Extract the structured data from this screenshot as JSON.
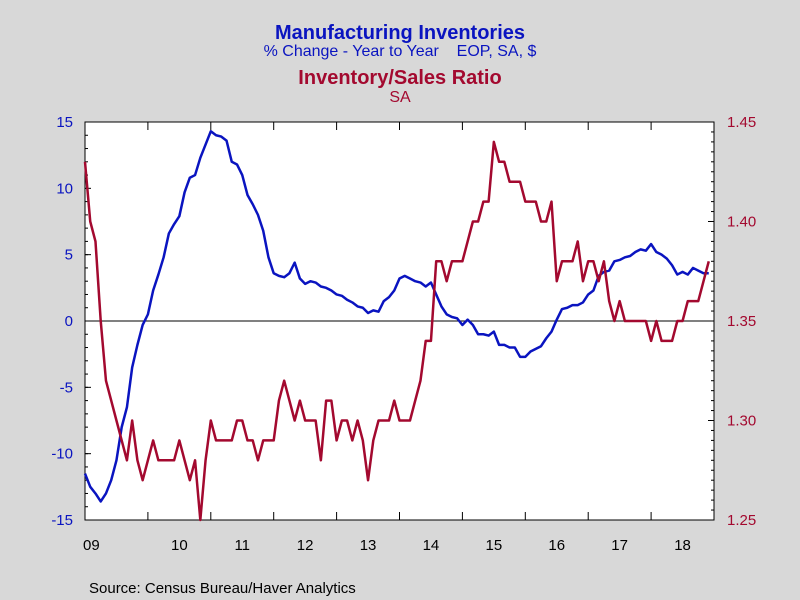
{
  "titles": {
    "title1": "Manufacturing Inventories",
    "subtitle1": "% Change - Year to Year    EOP, SA, $",
    "title2": "Inventory/Sales Ratio",
    "subtitle2": "SA"
  },
  "source": "Source:  Census Bureau/Haver Analytics",
  "colors": {
    "blue": "#0a14c0",
    "red": "#a3092f",
    "background": "#d8d8d8",
    "plot_background": "#ffffff"
  },
  "chart_data": {
    "type": "line",
    "grid": false,
    "x_range": [
      2009.0,
      2019.0
    ],
    "x_tick_labels": [
      "09",
      "10",
      "11",
      "12",
      "13",
      "14",
      "15",
      "16",
      "17",
      "18"
    ],
    "y_left": {
      "range": [
        -15,
        15
      ],
      "ticks": [
        15,
        10,
        5,
        0,
        -5,
        -10,
        -15
      ],
      "tick_labels": [
        "15",
        "10",
        "5",
        "0",
        "-5",
        "-10",
        "-15"
      ],
      "zero_line": true
    },
    "y_right": {
      "range": [
        1.25,
        1.45
      ],
      "ticks": [
        1.45,
        1.4,
        1.35,
        1.3,
        1.25
      ],
      "tick_labels": [
        "1.45",
        "1.40",
        "1.35",
        "1.30",
        "1.25"
      ]
    },
    "series": [
      {
        "name": "Manufacturing Inventories",
        "axis": "left",
        "color": "#0a14c0",
        "start": 2009.0,
        "step": 0.0833333,
        "values": [
          -11.5,
          -12.5,
          -13.0,
          -13.6,
          -13.0,
          -12.0,
          -10.5,
          -8.0,
          -6.5,
          -3.5,
          -1.8,
          -0.3,
          0.5,
          2.3,
          3.5,
          4.8,
          6.6,
          7.3,
          7.9,
          9.7,
          10.8,
          11.0,
          12.3,
          13.3,
          14.3,
          14.0,
          13.9,
          13.6,
          12.0,
          11.8,
          11.0,
          9.5,
          8.8,
          8.0,
          6.8,
          4.8,
          3.6,
          3.4,
          3.3,
          3.6,
          4.4,
          3.2,
          2.8,
          3.0,
          2.9,
          2.6,
          2.5,
          2.3,
          2.0,
          1.9,
          1.6,
          1.4,
          1.1,
          1.0,
          0.6,
          0.8,
          0.7,
          1.5,
          1.8,
          2.3,
          3.2,
          3.4,
          3.2,
          3.0,
          2.9,
          2.6,
          2.9,
          2.0,
          1.1,
          0.5,
          0.3,
          0.2,
          -0.3,
          0.1,
          -0.3,
          -1.0,
          -1.0,
          -1.1,
          -0.8,
          -1.8,
          -1.8,
          -2.0,
          -2.0,
          -2.7,
          -2.7,
          -2.3,
          -2.1,
          -1.9,
          -1.3,
          -0.8,
          0.1,
          0.9,
          1.0,
          1.2,
          1.2,
          1.4,
          2.0,
          2.3,
          3.4,
          3.7,
          3.8,
          4.5,
          4.6,
          4.8,
          4.9,
          5.2,
          5.4,
          5.3,
          5.8,
          5.2,
          5.0,
          4.7,
          4.2,
          3.5,
          3.7,
          3.5,
          4.0,
          3.8,
          3.6,
          3.6
        ]
      },
      {
        "name": "Inventory/Sales Ratio",
        "axis": "right",
        "color": "#a3092f",
        "start": 2009.0,
        "step": 0.0833333,
        "values": [
          1.43,
          1.4,
          1.39,
          1.35,
          1.32,
          1.31,
          1.3,
          1.29,
          1.28,
          1.3,
          1.28,
          1.27,
          1.28,
          1.29,
          1.28,
          1.28,
          1.28,
          1.28,
          1.29,
          1.28,
          1.27,
          1.28,
          1.25,
          1.28,
          1.3,
          1.29,
          1.29,
          1.29,
          1.29,
          1.3,
          1.3,
          1.29,
          1.29,
          1.28,
          1.29,
          1.29,
          1.29,
          1.31,
          1.32,
          1.31,
          1.3,
          1.31,
          1.3,
          1.3,
          1.3,
          1.28,
          1.31,
          1.31,
          1.29,
          1.3,
          1.3,
          1.29,
          1.3,
          1.29,
          1.27,
          1.29,
          1.3,
          1.3,
          1.3,
          1.31,
          1.3,
          1.3,
          1.3,
          1.31,
          1.32,
          1.34,
          1.34,
          1.38,
          1.38,
          1.37,
          1.38,
          1.38,
          1.38,
          1.39,
          1.4,
          1.4,
          1.41,
          1.41,
          1.44,
          1.43,
          1.43,
          1.42,
          1.42,
          1.42,
          1.41,
          1.41,
          1.41,
          1.4,
          1.4,
          1.41,
          1.37,
          1.38,
          1.38,
          1.38,
          1.39,
          1.37,
          1.38,
          1.38,
          1.37,
          1.38,
          1.36,
          1.35,
          1.36,
          1.35,
          1.35,
          1.35,
          1.35,
          1.35,
          1.34,
          1.35,
          1.34,
          1.34,
          1.34,
          1.35,
          1.35,
          1.36,
          1.36,
          1.36,
          1.37,
          1.38
        ]
      }
    ]
  }
}
